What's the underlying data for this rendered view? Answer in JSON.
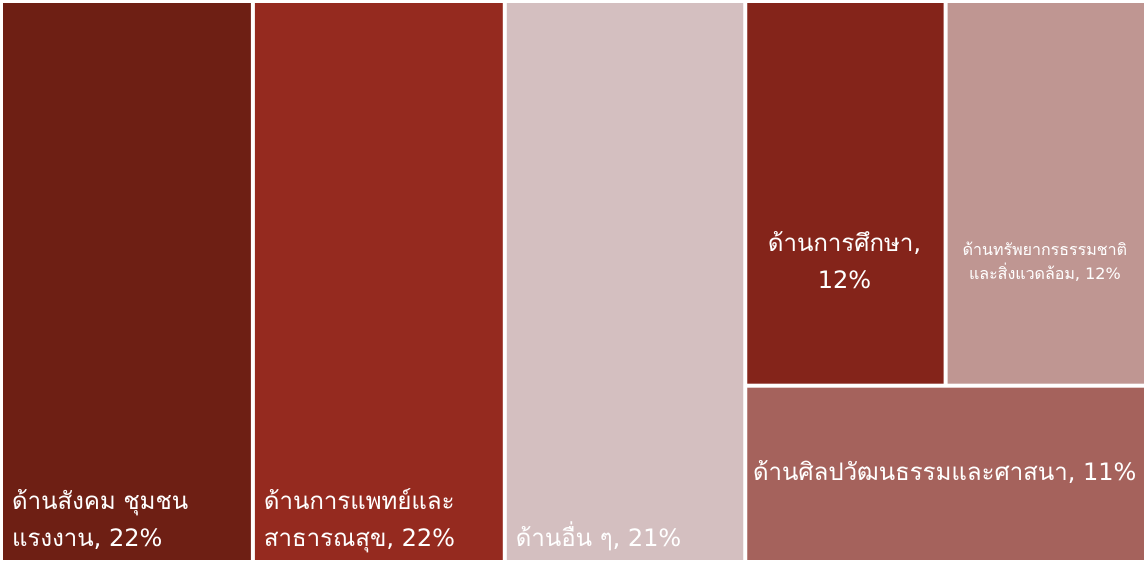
{
  "chart_data": {
    "type": "treemap",
    "value_labels": [
      "ด้านสังคม ชุมชน แรงงาน, 22%",
      "ด้านการแพทย์และสาธารณสุข, 22%",
      "ด้านอื่น ๆ, 21%",
      "ด้านการศึกษา, 12%",
      "ด้านทรัพยากรธรรมชาติ และสิ่งแวดล้อม, 12%",
      "ด้านศิลปวัฒนธรรมและศาสนา, 11%"
    ],
    "values": [
      22,
      22,
      21,
      12,
      12,
      11
    ],
    "colors": [
      "#6e1f14",
      "#952a1f",
      "#d4bfc0",
      "#84241a",
      "#bf9692",
      "#a5625c"
    ]
  }
}
